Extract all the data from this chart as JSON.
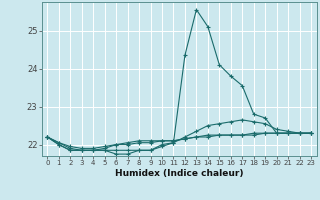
{
  "title": "",
  "xlabel": "Humidex (Indice chaleur)",
  "bg_color": "#cce8ee",
  "grid_color": "#b0d8e0",
  "line_color": "#1a6b6b",
  "xlim": [
    -0.5,
    23.5
  ],
  "ylim": [
    21.7,
    25.75
  ],
  "yticks": [
    22,
    23,
    24,
    25
  ],
  "xticks": [
    0,
    1,
    2,
    3,
    4,
    5,
    6,
    7,
    8,
    9,
    10,
    11,
    12,
    13,
    14,
    15,
    16,
    17,
    18,
    19,
    20,
    21,
    22,
    23
  ],
  "lines": [
    [
      22.2,
      22.0,
      21.85,
      21.85,
      21.85,
      21.85,
      21.75,
      21.75,
      21.85,
      21.85,
      22.0,
      22.05,
      24.35,
      25.55,
      25.1,
      24.1,
      23.8,
      23.55,
      22.8,
      22.7,
      22.3,
      22.3,
      22.3,
      22.3
    ],
    [
      22.2,
      22.0,
      21.85,
      21.85,
      21.85,
      21.85,
      21.85,
      21.85,
      21.85,
      21.85,
      21.95,
      22.05,
      22.2,
      22.35,
      22.5,
      22.55,
      22.6,
      22.65,
      22.6,
      22.55,
      22.4,
      22.35,
      22.3,
      22.3
    ],
    [
      22.2,
      22.05,
      21.95,
      21.9,
      21.9,
      21.95,
      22.0,
      22.05,
      22.1,
      22.1,
      22.1,
      22.1,
      22.15,
      22.2,
      22.25,
      22.25,
      22.25,
      22.25,
      22.25,
      22.3,
      22.3,
      22.3,
      22.3,
      22.3
    ],
    [
      22.2,
      22.05,
      21.9,
      21.85,
      21.85,
      21.9,
      22.0,
      22.0,
      22.05,
      22.05,
      22.1,
      22.1,
      22.15,
      22.2,
      22.2,
      22.25,
      22.25,
      22.25,
      22.3,
      22.3,
      22.3,
      22.3,
      22.3,
      22.3
    ]
  ]
}
